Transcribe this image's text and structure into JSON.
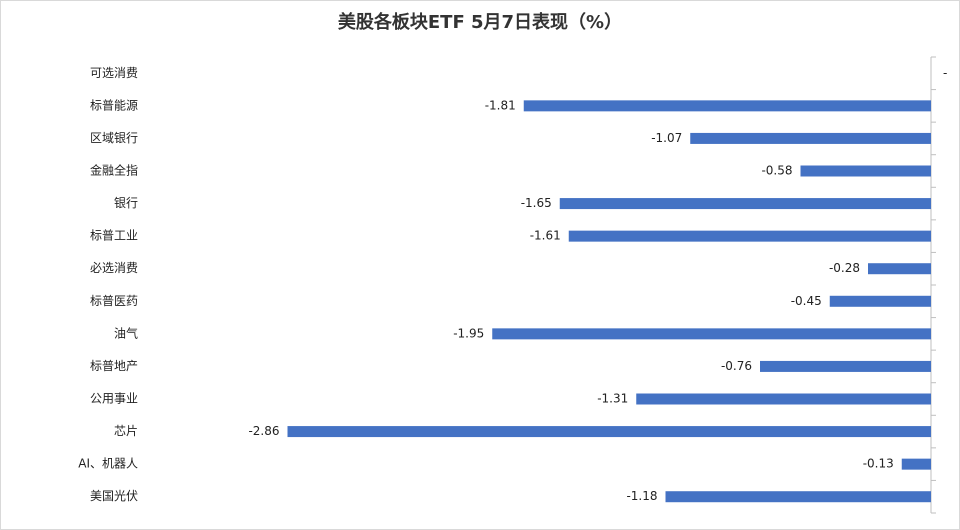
{
  "chart_data": {
    "type": "bar",
    "orientation": "horizontal",
    "title": "美股各板块ETF  5月7日表现（%）",
    "categories": [
      "可选消费",
      "标普能源",
      "区域银行",
      "金融全指",
      "银行",
      "标普工业",
      "必选消费",
      "标普医药",
      "油气",
      "标普地产",
      "公用事业",
      "芯片",
      "AI、机器人",
      "美国光伏"
    ],
    "values": [
      0,
      -1.81,
      -1.07,
      -0.58,
      -1.65,
      -1.61,
      -0.28,
      -0.45,
      -1.95,
      -0.76,
      -1.31,
      -2.86,
      -0.13,
      -1.18
    ],
    "value_labels": [
      "-",
      "-1.81",
      "-1.07",
      "-0.58",
      "-1.65",
      "-1.61",
      "-0.28",
      "-0.45",
      "-1.95",
      "-0.76",
      "-1.31",
      "-2.86",
      "-0.13",
      "-1.18"
    ],
    "color": "#4472c4",
    "xlim": [
      -3,
      0
    ]
  }
}
